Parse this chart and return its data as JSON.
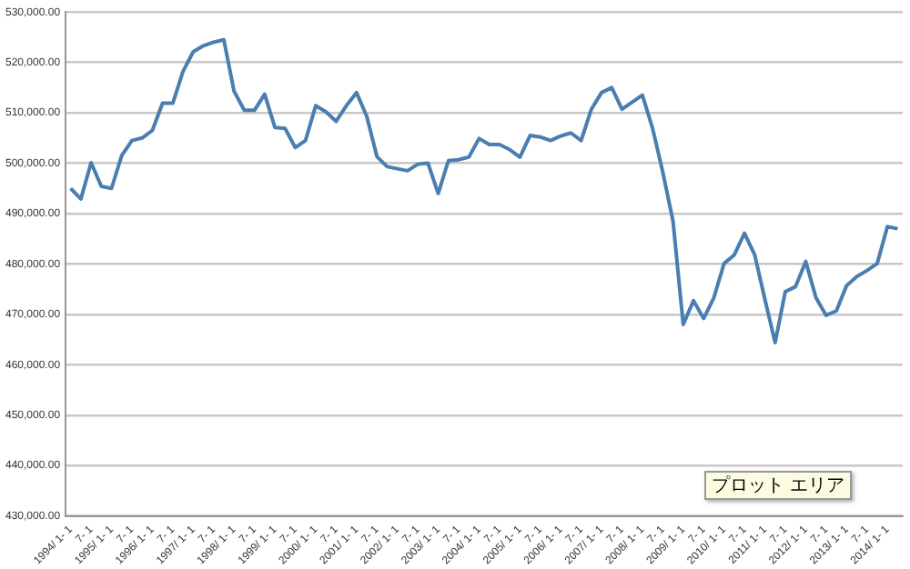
{
  "chart_data": {
    "type": "line",
    "categories": [
      "1994/ 1- 1",
      null,
      "7- 1",
      null,
      "1995/ 1- 1",
      null,
      "7- 1",
      null,
      "1996/ 1- 1",
      null,
      "7- 1",
      null,
      "1997/ 1- 1",
      null,
      "7- 1",
      null,
      "1998/ 1- 1",
      null,
      "7- 1",
      null,
      "1999/ 1- 1",
      null,
      "7- 1",
      null,
      "2000/ 1- 1",
      null,
      "7- 1",
      null,
      "2001/ 1- 1",
      null,
      "7- 1",
      null,
      "2002/ 1- 1",
      null,
      "7- 1",
      null,
      "2003/ 1- 1",
      null,
      "7- 1",
      null,
      "2004/ 1- 1",
      null,
      "7- 1",
      null,
      "2005/ 1- 1",
      null,
      "7- 1",
      null,
      "2006/ 1- 1",
      null,
      "7- 1",
      null,
      "2007/ 1- 1",
      null,
      "7- 1",
      null,
      "2008/ 1- 1",
      null,
      "7- 1",
      null,
      "2009/ 1- 1",
      null,
      "7- 1",
      null,
      "2010/ 1- 1",
      null,
      "7- 1",
      null,
      "2011/ 1- 1",
      null,
      "7- 1",
      null,
      "2012/ 1- 1",
      null,
      "7- 1",
      null,
      "2013/ 1- 1",
      null,
      "7- 1",
      null,
      "2014/ 1- 1",
      null
    ],
    "series": [
      {
        "color": "#4a7eb0",
        "values": [
          495000,
          492900,
          500100,
          495400,
          495000,
          501500,
          504500,
          505000,
          506500,
          511900,
          511900,
          518200,
          522100,
          523300,
          524000,
          524500,
          514300,
          510500,
          510500,
          513700,
          507100,
          506900,
          503100,
          504500,
          511400,
          510200,
          508300,
          511400,
          514000,
          509300,
          501300,
          499300,
          498900,
          498500,
          499800,
          500000,
          494000,
          500500,
          500700,
          501200,
          504900,
          503700,
          503700,
          502700,
          501200,
          505500,
          505200,
          504500,
          505400,
          506000,
          504500,
          510700,
          514000,
          515000,
          510700,
          512100,
          513500,
          506900,
          498200,
          488500,
          468000,
          472700,
          469200,
          473300,
          480100,
          481800,
          486100,
          481800,
          473000,
          464400,
          474500,
          475500,
          480500,
          473300,
          469800,
          470700,
          475700,
          477500,
          478700,
          480100,
          487400,
          487000
        ]
      }
    ],
    "ylim": [
      430000,
      530000
    ],
    "yticks": [
      {
        "value": 430000,
        "label": "430,000.00"
      },
      {
        "value": 440000,
        "label": "440,000.00"
      },
      {
        "value": 450000,
        "label": "450,000.00"
      },
      {
        "value": 460000,
        "label": "460,000.00"
      },
      {
        "value": 470000,
        "label": "470,000.00"
      },
      {
        "value": 480000,
        "label": "480,000.00"
      },
      {
        "value": 490000,
        "label": "490,000.00"
      },
      {
        "value": 500000,
        "label": "500,000.00"
      },
      {
        "value": 510000,
        "label": "510,000.00"
      },
      {
        "value": 520000,
        "label": "520,000.00"
      },
      {
        "value": 530000,
        "label": "530,000.00"
      }
    ],
    "grid": "y",
    "legend": false,
    "marker": "none",
    "line_style": "solid",
    "annotations": [
      "プロット エリア"
    ]
  }
}
